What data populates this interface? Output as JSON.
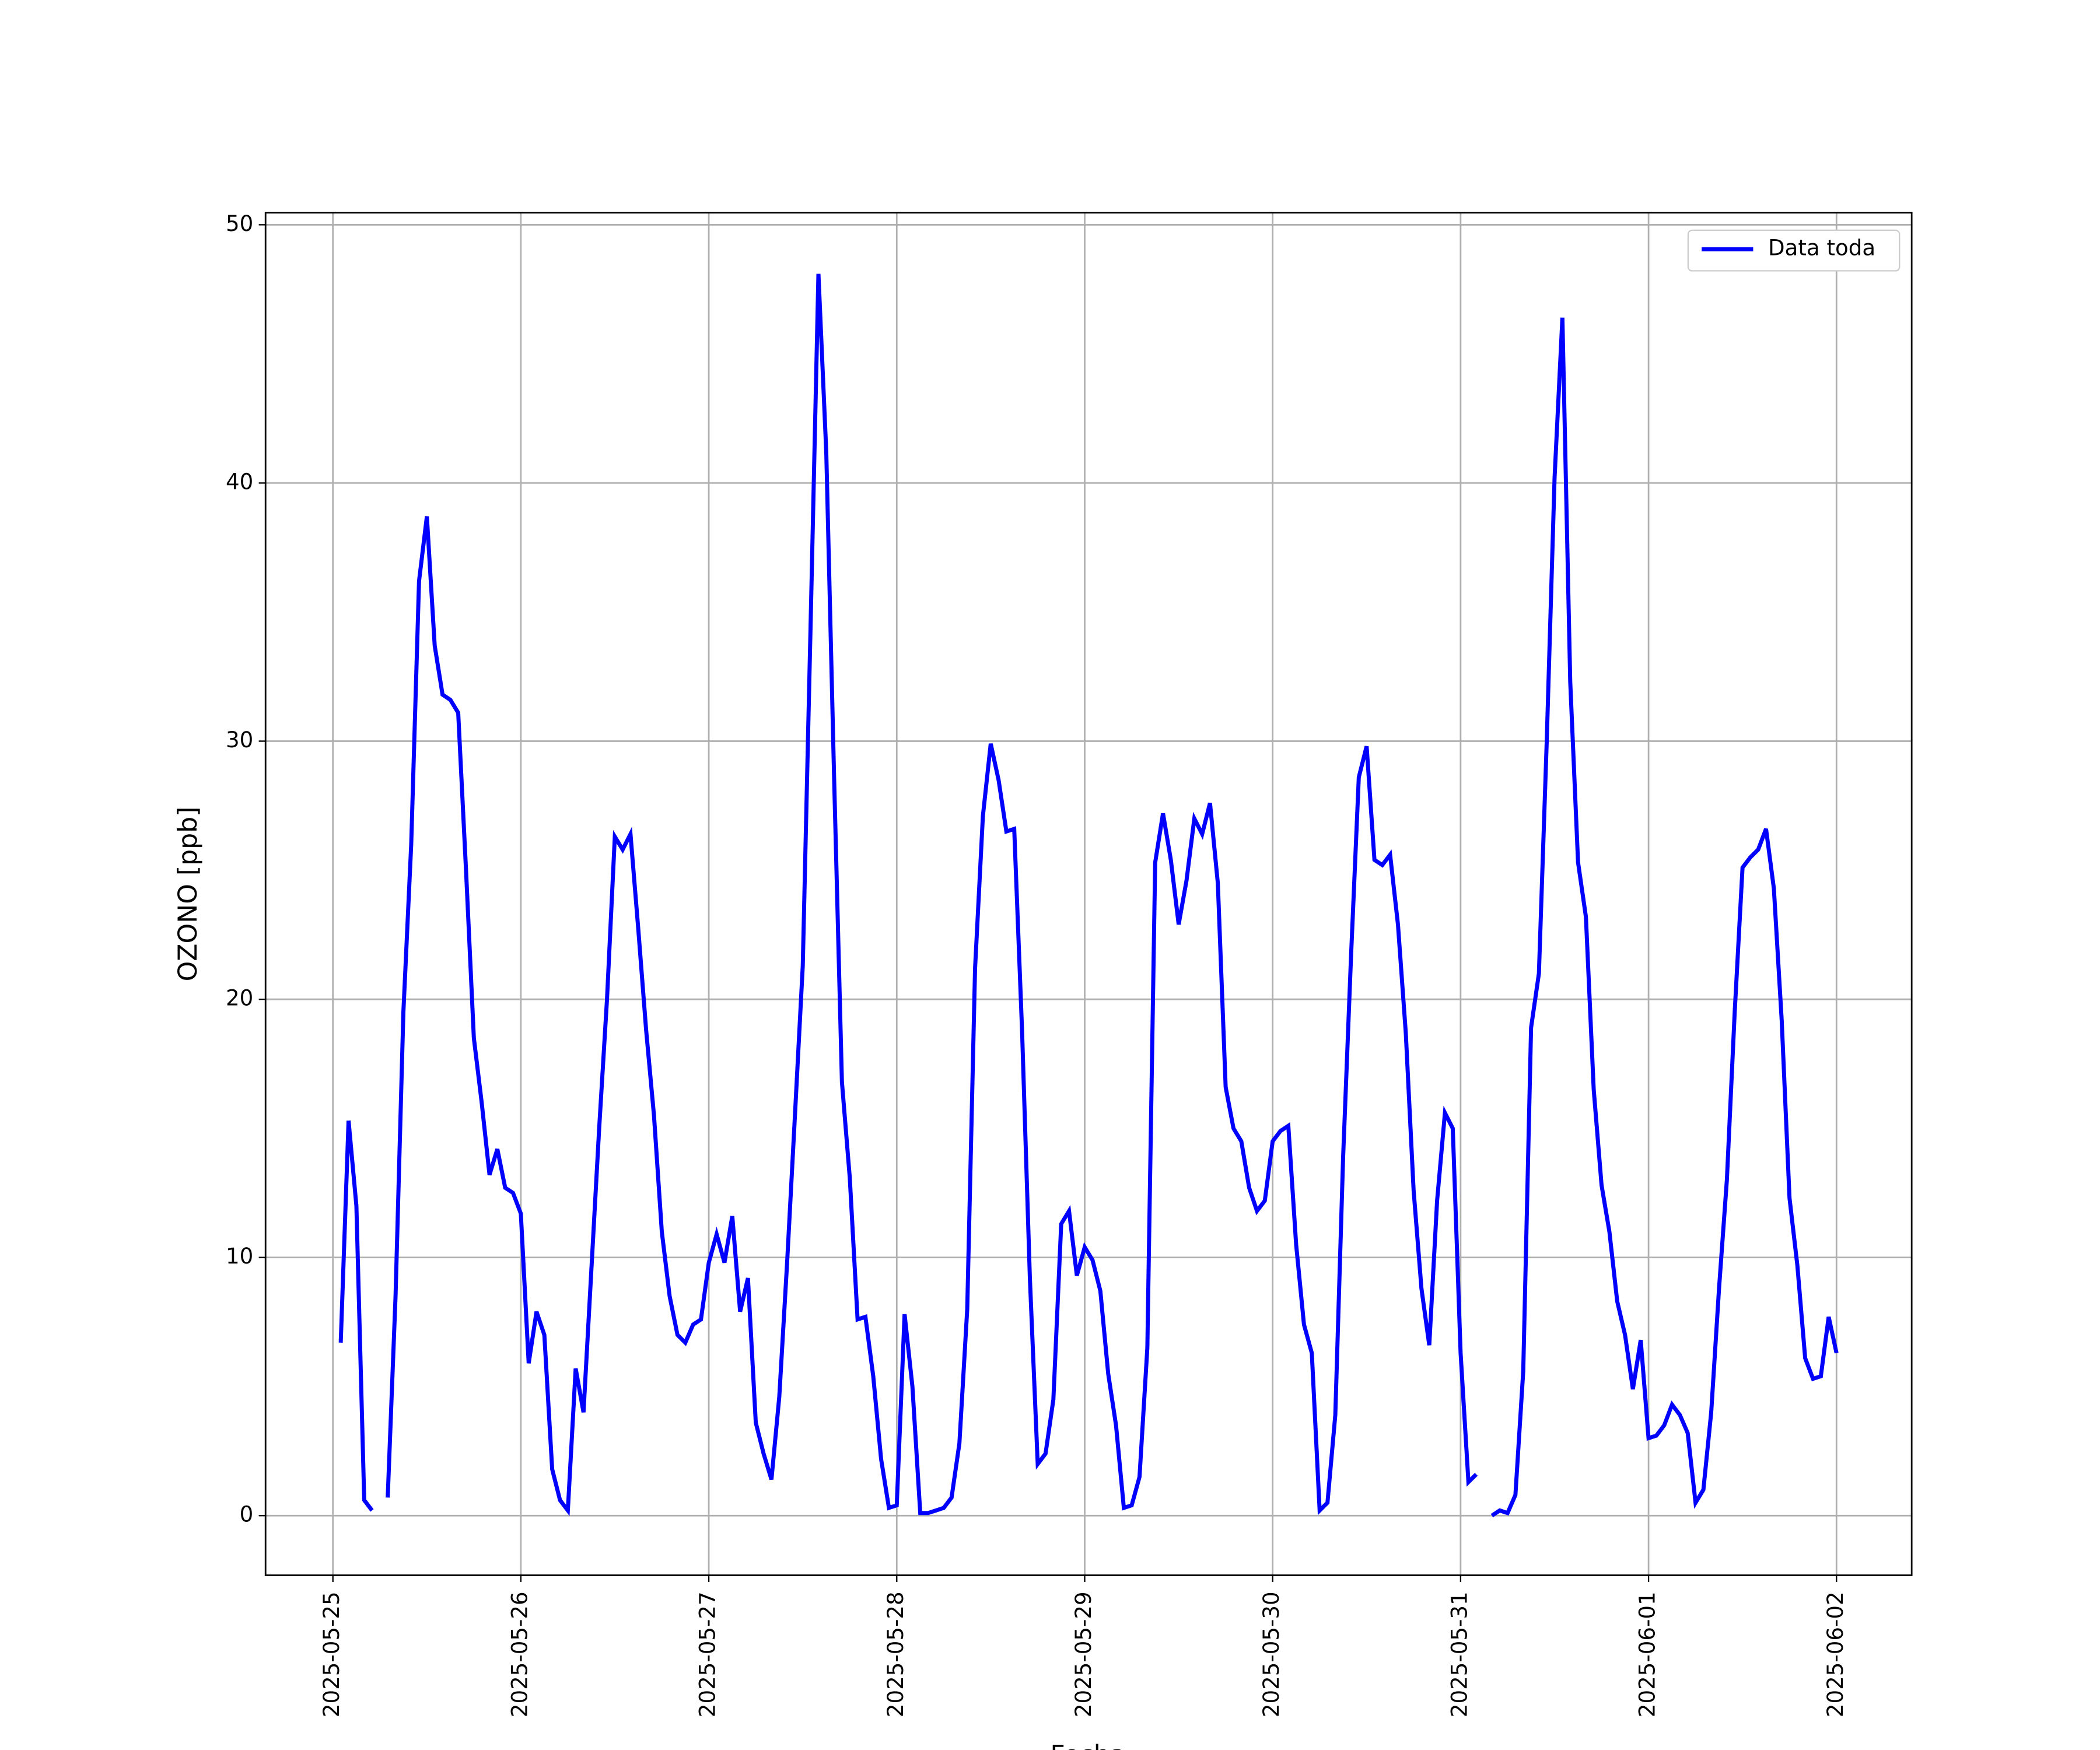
{
  "chart_data": {
    "type": "line",
    "xlabel": "Fecha",
    "ylabel": "OZONO [ppb]",
    "x": [
      "2025-05-25 01:00",
      "2025-05-25 02:00",
      "2025-05-25 03:00",
      "2025-05-25 04:00",
      "2025-05-25 05:00",
      "2025-05-25 06:00",
      "2025-05-25 07:00",
      "2025-05-25 08:00",
      "2025-05-25 09:00",
      "2025-05-25 10:00",
      "2025-05-25 11:00",
      "2025-05-25 12:00",
      "2025-05-25 13:00",
      "2025-05-25 14:00",
      "2025-05-25 15:00",
      "2025-05-25 16:00",
      "2025-05-25 17:00",
      "2025-05-25 18:00",
      "2025-05-25 19:00",
      "2025-05-25 20:00",
      "2025-05-25 21:00",
      "2025-05-25 22:00",
      "2025-05-25 23:00",
      "2025-05-26 00:00",
      "2025-05-26 01:00",
      "2025-05-26 02:00",
      "2025-05-26 03:00",
      "2025-05-26 04:00",
      "2025-05-26 05:00",
      "2025-05-26 06:00",
      "2025-05-26 07:00",
      "2025-05-26 08:00",
      "2025-05-26 09:00",
      "2025-05-26 10:00",
      "2025-05-26 11:00",
      "2025-05-26 12:00",
      "2025-05-26 13:00",
      "2025-05-26 14:00",
      "2025-05-26 15:00",
      "2025-05-26 16:00",
      "2025-05-26 17:00",
      "2025-05-26 18:00",
      "2025-05-26 19:00",
      "2025-05-26 20:00",
      "2025-05-26 21:00",
      "2025-05-26 22:00",
      "2025-05-26 23:00",
      "2025-05-27 00:00",
      "2025-05-27 01:00",
      "2025-05-27 02:00",
      "2025-05-27 03:00",
      "2025-05-27 04:00",
      "2025-05-27 05:00",
      "2025-05-27 06:00",
      "2025-05-27 07:00",
      "2025-05-27 08:00",
      "2025-05-27 09:00",
      "2025-05-27 10:00",
      "2025-05-27 11:00",
      "2025-05-27 12:00",
      "2025-05-27 13:00",
      "2025-05-27 14:00",
      "2025-05-27 15:00",
      "2025-05-27 16:00",
      "2025-05-27 17:00",
      "2025-05-27 18:00",
      "2025-05-27 19:00",
      "2025-05-27 20:00",
      "2025-05-27 21:00",
      "2025-05-27 22:00",
      "2025-05-27 23:00",
      "2025-05-28 00:00",
      "2025-05-28 01:00",
      "2025-05-28 02:00",
      "2025-05-28 03:00",
      "2025-05-28 04:00",
      "2025-05-28 05:00",
      "2025-05-28 06:00",
      "2025-05-28 07:00",
      "2025-05-28 08:00",
      "2025-05-28 09:00",
      "2025-05-28 10:00",
      "2025-05-28 11:00",
      "2025-05-28 12:00",
      "2025-05-28 13:00",
      "2025-05-28 14:00",
      "2025-05-28 15:00",
      "2025-05-28 16:00",
      "2025-05-28 17:00",
      "2025-05-28 18:00",
      "2025-05-28 19:00",
      "2025-05-28 20:00",
      "2025-05-28 21:00",
      "2025-05-28 22:00",
      "2025-05-28 23:00",
      "2025-05-29 00:00",
      "2025-05-29 01:00",
      "2025-05-29 02:00",
      "2025-05-29 03:00",
      "2025-05-29 04:00",
      "2025-05-29 05:00",
      "2025-05-29 06:00",
      "2025-05-29 07:00",
      "2025-05-29 08:00",
      "2025-05-29 09:00",
      "2025-05-29 10:00",
      "2025-05-29 11:00",
      "2025-05-29 12:00",
      "2025-05-29 13:00",
      "2025-05-29 14:00",
      "2025-05-29 15:00",
      "2025-05-29 16:00",
      "2025-05-29 17:00",
      "2025-05-29 18:00",
      "2025-05-29 19:00",
      "2025-05-29 20:00",
      "2025-05-29 21:00",
      "2025-05-29 22:00",
      "2025-05-29 23:00",
      "2025-05-30 00:00",
      "2025-05-30 01:00",
      "2025-05-30 02:00",
      "2025-05-30 03:00",
      "2025-05-30 04:00",
      "2025-05-30 05:00",
      "2025-05-30 06:00",
      "2025-05-30 07:00",
      "2025-05-30 08:00",
      "2025-05-30 09:00",
      "2025-05-30 10:00",
      "2025-05-30 11:00",
      "2025-05-30 12:00",
      "2025-05-30 13:00",
      "2025-05-30 14:00",
      "2025-05-30 15:00",
      "2025-05-30 16:00",
      "2025-05-30 17:00",
      "2025-05-30 18:00",
      "2025-05-30 19:00",
      "2025-05-30 20:00",
      "2025-05-30 21:00",
      "2025-05-30 22:00",
      "2025-05-30 23:00",
      "2025-05-31 00:00",
      "2025-05-31 01:00",
      "2025-05-31 02:00",
      "2025-05-31 03:00",
      "2025-05-31 04:00",
      "2025-05-31 05:00",
      "2025-05-31 06:00",
      "2025-05-31 07:00",
      "2025-05-31 08:00",
      "2025-05-31 09:00",
      "2025-05-31 10:00",
      "2025-05-31 11:00",
      "2025-05-31 12:00",
      "2025-05-31 13:00",
      "2025-05-31 14:00",
      "2025-05-31 15:00",
      "2025-05-31 16:00",
      "2025-05-31 17:00",
      "2025-05-31 18:00",
      "2025-05-31 19:00",
      "2025-05-31 20:00",
      "2025-05-31 21:00",
      "2025-05-31 22:00",
      "2025-05-31 23:00",
      "2025-06-01 00:00",
      "2025-06-01 01:00",
      "2025-06-01 02:00",
      "2025-06-01 03:00",
      "2025-06-01 04:00",
      "2025-06-01 05:00",
      "2025-06-01 06:00",
      "2025-06-01 07:00",
      "2025-06-01 08:00",
      "2025-06-01 09:00",
      "2025-06-01 10:00",
      "2025-06-01 11:00",
      "2025-06-01 12:00",
      "2025-06-01 13:00",
      "2025-06-01 14:00",
      "2025-06-01 15:00",
      "2025-06-01 16:00",
      "2025-06-01 17:00",
      "2025-06-01 18:00",
      "2025-06-01 19:00",
      "2025-06-01 20:00",
      "2025-06-01 21:00",
      "2025-06-01 22:00",
      "2025-06-01 23:00",
      "2025-06-02 00:00"
    ],
    "series": [
      {
        "name": "Data toda",
        "color": "#0000ff",
        "values": [
          6.7,
          15.3,
          12.0,
          0.6,
          0.2,
          null,
          0.7,
          8.5,
          19.5,
          26.0,
          36.2,
          38.7,
          33.7,
          31.8,
          31.6,
          31.1,
          25.0,
          18.5,
          16.0,
          13.2,
          14.2,
          12.7,
          12.5,
          11.7,
          5.9,
          7.9,
          7.0,
          1.8,
          0.6,
          0.2,
          5.7,
          4.0,
          9.5,
          15.0,
          20.0,
          26.3,
          25.8,
          26.4,
          22.7,
          18.8,
          15.5,
          11.0,
          8.5,
          7.0,
          6.7,
          7.4,
          7.6,
          9.8,
          10.9,
          9.8,
          11.6,
          7.9,
          9.2,
          3.6,
          2.4,
          1.4,
          4.6,
          9.8,
          15.5,
          21.3,
          34.5,
          48.1,
          41.2,
          28.6,
          16.8,
          13.1,
          7.6,
          7.7,
          5.4,
          2.2,
          0.3,
          0.4,
          7.8,
          5.0,
          0.1,
          0.1,
          0.2,
          0.3,
          0.7,
          2.8,
          8.0,
          21.2,
          27.1,
          29.9,
          28.5,
          26.5,
          26.6,
          18.8,
          9.2,
          2.0,
          2.4,
          4.5,
          11.3,
          11.8,
          9.3,
          10.4,
          9.9,
          8.7,
          5.5,
          3.5,
          0.3,
          0.4,
          1.5,
          6.5,
          25.3,
          27.2,
          25.4,
          22.9,
          24.6,
          27.0,
          26.4,
          27.6,
          24.5,
          16.6,
          15.0,
          14.5,
          12.7,
          11.8,
          12.2,
          14.5,
          14.9,
          15.1,
          10.5,
          7.4,
          6.3,
          0.2,
          0.5,
          3.9,
          13.9,
          21.6,
          28.6,
          29.8,
          25.4,
          25.2,
          25.6,
          22.9,
          18.7,
          12.6,
          8.8,
          6.6,
          12.2,
          15.6,
          15.0,
          6.3,
          1.3,
          1.6,
          null,
          0.0,
          0.2,
          0.1,
          0.8,
          5.6,
          18.9,
          21.0,
          30.0,
          40.2,
          46.4,
          32.3,
          25.3,
          23.2,
          16.5,
          12.8,
          11.0,
          8.3,
          7.0,
          4.9,
          6.8,
          3.0,
          3.1,
          3.5,
          4.3,
          3.9,
          3.2,
          0.5,
          1.0,
          4.0,
          8.8,
          13.0,
          19.5,
          25.1,
          25.5,
          25.8,
          26.6,
          24.3,
          19.2,
          12.3,
          9.7,
          6.1,
          5.3,
          5.4,
          7.7,
          6.3
        ]
      }
    ],
    "xlim": [
      "2025-05-24 15:24",
      "2025-06-02 09:36"
    ],
    "xticks": [
      "2025-05-25",
      "2025-05-26",
      "2025-05-27",
      "2025-05-28",
      "2025-05-29",
      "2025-05-30",
      "2025-05-31",
      "2025-06-01",
      "2025-06-02"
    ],
    "ylim": [
      -2.31,
      50.47
    ],
    "yticks": [
      0,
      10,
      20,
      30,
      40,
      50
    ],
    "grid": true,
    "legend": "upper right"
  }
}
